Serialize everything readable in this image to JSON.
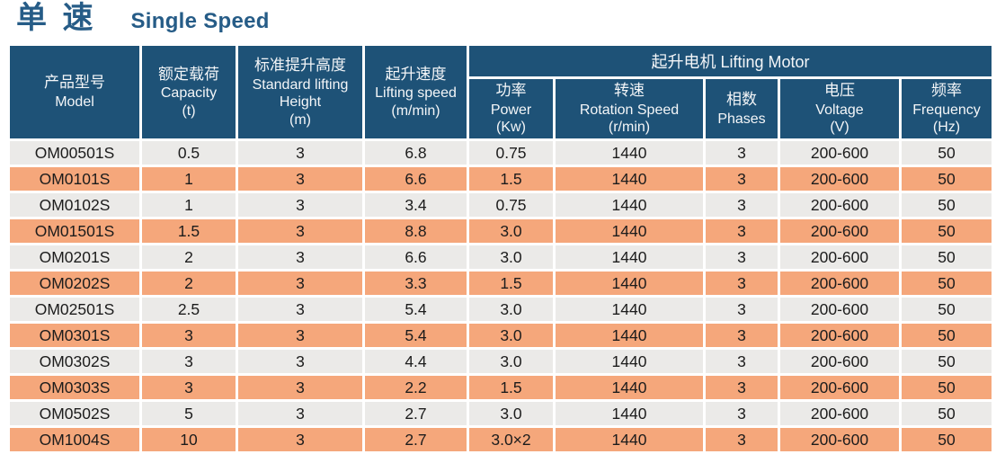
{
  "title": {
    "zh": "单 速",
    "en": "Single Speed"
  },
  "colors": {
    "title_blue": "#265c87",
    "header_blue": "#1e5277",
    "row_light": "#ebeae8",
    "row_orange": "#f5a77b"
  },
  "table": {
    "group_header": "起升电机 Lifting Motor",
    "columns": [
      {
        "zh": "产品型号",
        "en": "Model",
        "unit": ""
      },
      {
        "zh": "额定载荷",
        "en": "Capacity",
        "unit": "(t)"
      },
      {
        "zh": "标准提升高度",
        "en": "Standard lifting Height",
        "unit": "(m)"
      },
      {
        "zh": "起升速度",
        "en": "Lifting speed",
        "unit": "(m/min)"
      },
      {
        "zh": "功率",
        "en": "Power",
        "unit": "(Kw)"
      },
      {
        "zh": "转速",
        "en": "Rotation Speed",
        "unit": "(r/min)"
      },
      {
        "zh": "相数",
        "en": "Phases",
        "unit": ""
      },
      {
        "zh": "电压",
        "en": "Voltage",
        "unit": "(V)"
      },
      {
        "zh": "频率",
        "en": "Frequency",
        "unit": "(Hz)"
      }
    ],
    "rows": [
      [
        "OM00501S",
        "0.5",
        "3",
        "6.8",
        "0.75",
        "1440",
        "3",
        "200-600",
        "50"
      ],
      [
        "OM0101S",
        "1",
        "3",
        "6.6",
        "1.5",
        "1440",
        "3",
        "200-600",
        "50"
      ],
      [
        "OM0102S",
        "1",
        "3",
        "3.4",
        "0.75",
        "1440",
        "3",
        "200-600",
        "50"
      ],
      [
        "OM01501S",
        "1.5",
        "3",
        "8.8",
        "3.0",
        "1440",
        "3",
        "200-600",
        "50"
      ],
      [
        "OM0201S",
        "2",
        "3",
        "6.6",
        "3.0",
        "1440",
        "3",
        "200-600",
        "50"
      ],
      [
        "OM0202S",
        "2",
        "3",
        "3.3",
        "1.5",
        "1440",
        "3",
        "200-600",
        "50"
      ],
      [
        "OM02501S",
        "2.5",
        "3",
        "5.4",
        "3.0",
        "1440",
        "3",
        "200-600",
        "50"
      ],
      [
        "OM0301S",
        "3",
        "3",
        "5.4",
        "3.0",
        "1440",
        "3",
        "200-600",
        "50"
      ],
      [
        "OM0302S",
        "3",
        "3",
        "4.4",
        "3.0",
        "1440",
        "3",
        "200-600",
        "50"
      ],
      [
        "OM0303S",
        "3",
        "3",
        "2.2",
        "1.5",
        "1440",
        "3",
        "200-600",
        "50"
      ],
      [
        "OM0502S",
        "5",
        "3",
        "2.7",
        "3.0",
        "1440",
        "3",
        "200-600",
        "50"
      ],
      [
        "OM1004S",
        "10",
        "3",
        "2.7",
        "3.0×2",
        "1440",
        "3",
        "200-600",
        "50"
      ]
    ]
  }
}
